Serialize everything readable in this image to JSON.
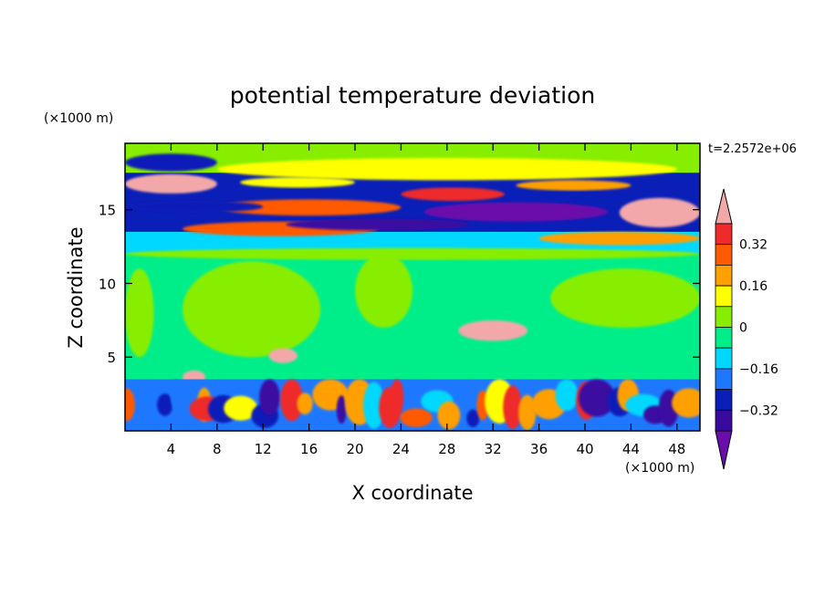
{
  "chart_data": {
    "type": "heatmap",
    "title": "potential temperature deviation",
    "xlabel": "X coordinate",
    "ylabel": "Z coordinate",
    "x_unit": "(×1000 m)",
    "y_unit": "(×1000 m)",
    "time_label": "t=2.2572e+06",
    "xlim": [
      0,
      50
    ],
    "ylim": [
      0,
      19.5
    ],
    "x_ticks": [
      4,
      8,
      12,
      16,
      20,
      24,
      28,
      32,
      36,
      40,
      44,
      48
    ],
    "y_ticks": [
      5,
      10,
      15
    ],
    "colorbar": {
      "levels": [
        -0.4,
        -0.32,
        -0.24,
        -0.16,
        -0.08,
        0,
        0.08,
        0.16,
        0.24,
        0.32,
        0.4
      ],
      "labeled_levels": [
        0.32,
        0.16,
        0,
        -0.16,
        -0.32
      ],
      "labels": [
        "0.32",
        "0.16",
        "0",
        "−0.16",
        "−0.32"
      ],
      "colors": [
        "#6a0dab",
        "#3a0aa0",
        "#0a1fb8",
        "#1e78ff",
        "#00d8ff",
        "#00ee8a",
        "#88ee00",
        "#ffff00",
        "#ffa000",
        "#ff5a00",
        "#ee2a2a",
        "#f2a8a8"
      ],
      "extend": "both"
    },
    "layers": [
      {
        "z_range": [
          0,
          3.5
        ],
        "description_value": "mixed",
        "values": [
          0.3,
          -0.35,
          0.25,
          -0.2,
          0.35,
          -0.3,
          0.3,
          0.15,
          -0.25,
          0.35,
          -0.3,
          0.25
        ]
      },
      {
        "z_range": [
          3.5,
          12
        ],
        "values": [
          0.02,
          0.06
        ]
      },
      {
        "z_range": [
          12,
          13.5
        ],
        "values": [
          -0.3,
          0.3
        ]
      },
      {
        "z_range": [
          13.5,
          17.5
        ],
        "values": [
          -0.4,
          0.4
        ]
      },
      {
        "z_range": [
          17.5,
          19.5
        ],
        "values": [
          0.02,
          0.1
        ]
      }
    ]
  }
}
